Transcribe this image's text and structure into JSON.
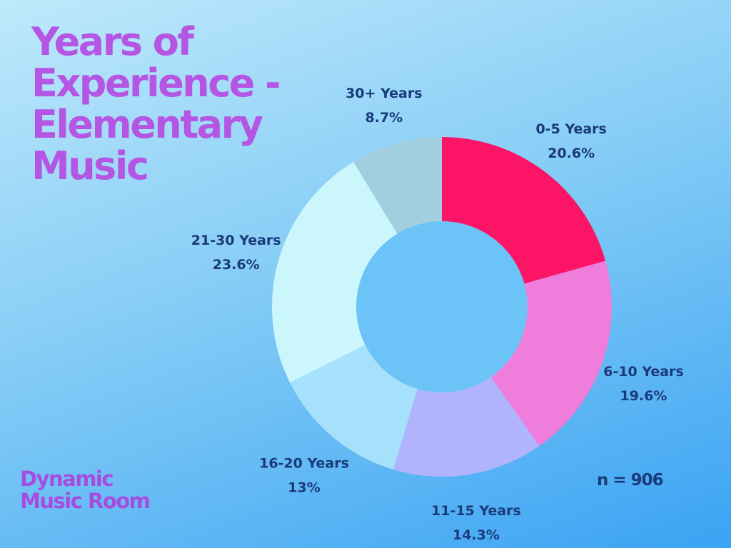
{
  "title": "Years of Experience - Elementary Music",
  "brand": [
    "Dynamic",
    "Music Room"
  ],
  "sample_size": "n = 906",
  "colors": {
    "title": "#b455e3",
    "brand": "#a64de0",
    "label_text": "#1a3a7a",
    "hole": "#6cc3f8"
  },
  "chart_data": {
    "type": "pie",
    "donut": true,
    "start_angle_deg": 0,
    "direction": "clockwise",
    "categories": [
      "0-5 Years",
      "6-10 Years",
      "11-15 Years",
      "16-20 Years",
      "21-30 Years",
      "30+ Years"
    ],
    "values": [
      20.6,
      19.6,
      14.3,
      13.0,
      23.6,
      8.7
    ],
    "value_labels": [
      "20.6%",
      "19.6%",
      "14.3%",
      "13%",
      "23.6%",
      "8.7%"
    ],
    "colors": [
      "#fc1467",
      "#ee7ddc",
      "#b1b4fd",
      "#a6e1fb",
      "#cbf6fb",
      "#a2cfdf"
    ],
    "legend": "none",
    "n": 906
  }
}
